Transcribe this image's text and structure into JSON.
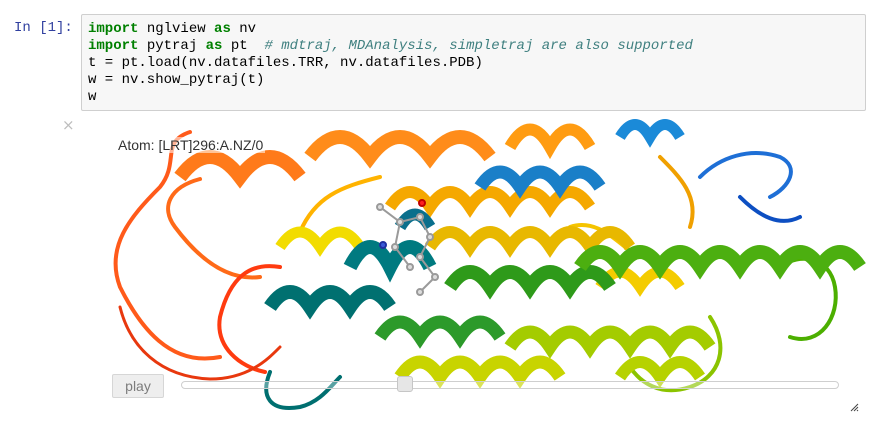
{
  "cell": {
    "prompt": "In [1]:",
    "code_lines": [
      [
        {
          "t": "import",
          "c": "kw"
        },
        {
          "t": " nglview ",
          "c": ""
        },
        {
          "t": "as",
          "c": "kw"
        },
        {
          "t": " nv",
          "c": ""
        }
      ],
      [
        {
          "t": "import",
          "c": "kw"
        },
        {
          "t": " pytraj ",
          "c": ""
        },
        {
          "t": "as",
          "c": "kw"
        },
        {
          "t": " pt  ",
          "c": ""
        },
        {
          "t": "# mdtraj, MDAnalysis, simpletraj are also supported",
          "c": "cm"
        }
      ],
      [
        {
          "t": "t = pt.load(nv.datafiles.TRR, nv.datafiles.PDB)",
          "c": ""
        }
      ],
      [
        {
          "t": "w = nv.show_pytraj(t)",
          "c": ""
        }
      ],
      [
        {
          "t": "w",
          "c": ""
        }
      ]
    ]
  },
  "widget": {
    "close_icon": "×",
    "atom_label": "Atom: [LRT]296:A.NZ/0",
    "play_label": "play",
    "slider_value": 0.34
  },
  "colors": {
    "prompt": "#303f9f",
    "keyword": "#008000",
    "comment": "#408080"
  },
  "icons": {
    "close": "close-icon",
    "resize": "resize-grip-icon"
  }
}
